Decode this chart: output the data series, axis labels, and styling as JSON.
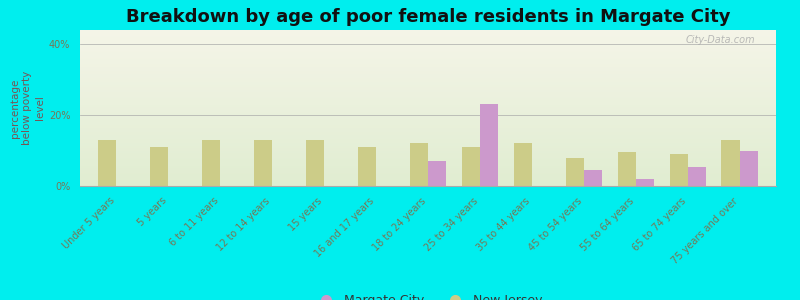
{
  "title": "Breakdown by age of poor female residents in Margate City",
  "categories": [
    "Under 5 years",
    "5 years",
    "6 to 11 years",
    "12 to 14 years",
    "15 years",
    "16 and 17 years",
    "18 to 24 years",
    "25 to 34 years",
    "35 to 44 years",
    "45 to 54 years",
    "55 to 64 years",
    "65 to 74 years",
    "75 years and over"
  ],
  "margate_values": [
    0,
    0,
    0,
    0,
    0,
    0,
    7.0,
    23.0,
    0,
    4.5,
    2.0,
    5.5,
    10.0
  ],
  "nj_values": [
    13.0,
    11.0,
    13.0,
    13.0,
    13.0,
    11.0,
    12.0,
    11.0,
    12.0,
    8.0,
    9.5,
    9.0,
    13.0
  ],
  "margate_color": "#cc99cc",
  "nj_color": "#cccc88",
  "background_color": "#00eeee",
  "ylabel": "percentage\nbelow poverty\nlevel",
  "ylim": [
    0,
    44
  ],
  "yticks": [
    0,
    20,
    40
  ],
  "ytick_labels": [
    "0%",
    "20%",
    "40%"
  ],
  "bar_width": 0.35,
  "title_fontsize": 13,
  "axis_label_fontsize": 7.5,
  "tick_fontsize": 7,
  "legend_margate": "Margate City",
  "legend_nj": "New Jersey",
  "watermark": "City-Data.com"
}
